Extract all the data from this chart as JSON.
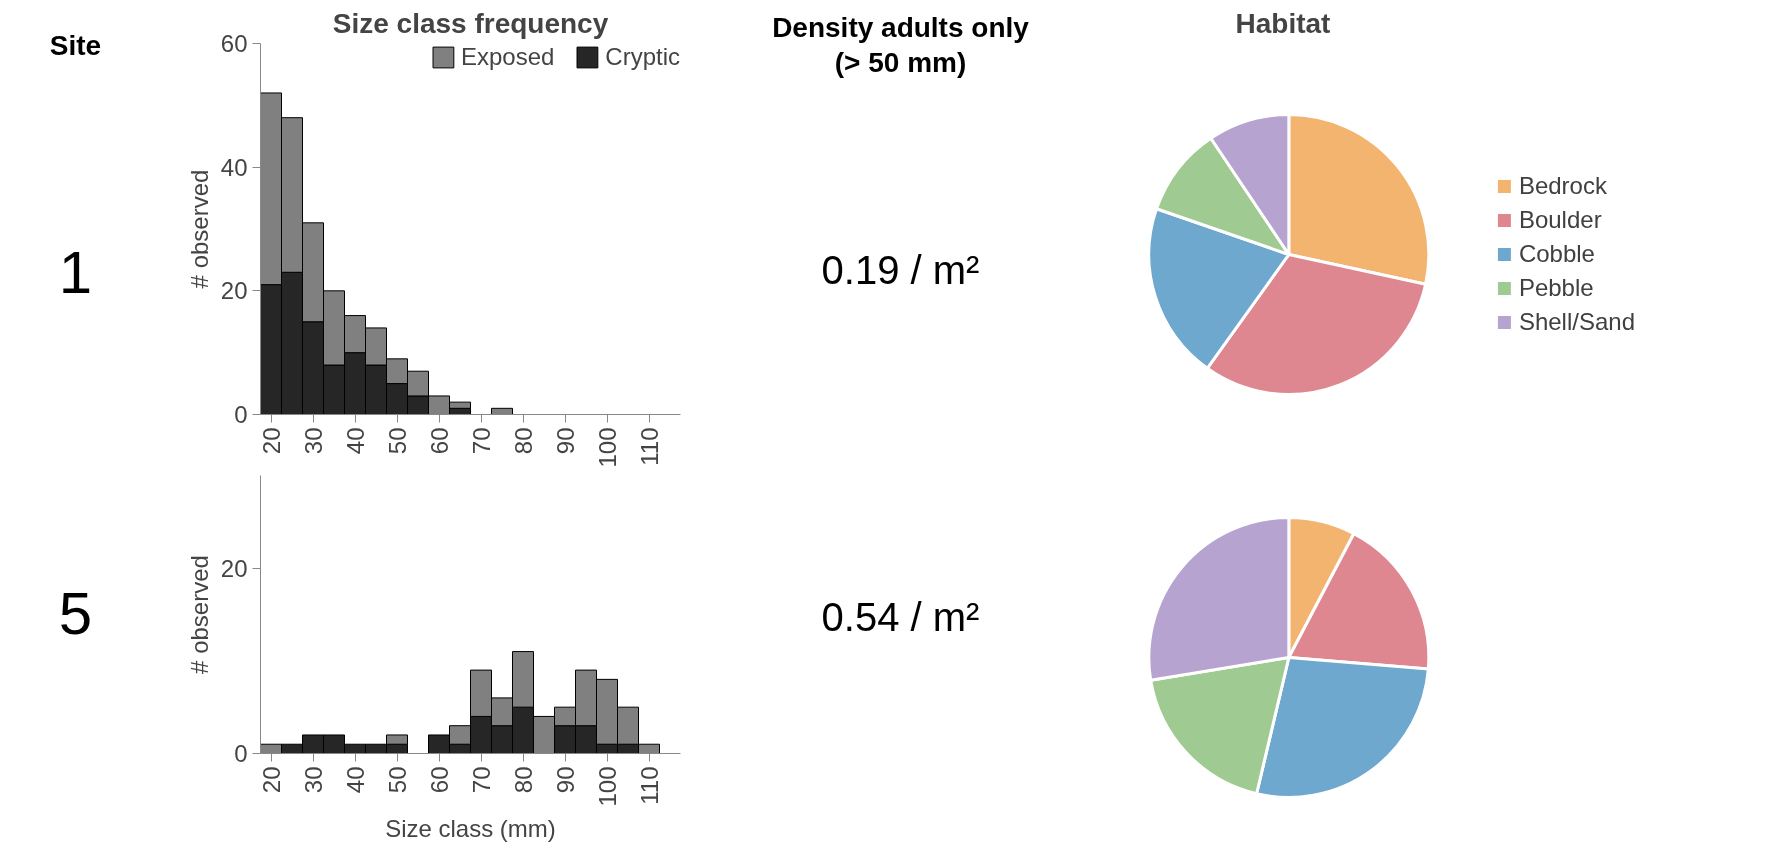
{
  "chart_data": [
    {
      "type": "other",
      "title": "Site",
      "annotations": [
        "1",
        "5"
      ]
    },
    {
      "type": "bar",
      "title": "Size class frequency",
      "ylabel": "# observed",
      "stacked": true,
      "legend": "top right",
      "grid": false,
      "x": [
        20,
        25,
        30,
        35,
        40,
        45,
        50,
        55,
        60,
        65,
        70,
        75,
        80,
        85,
        90,
        95,
        100,
        105,
        110,
        115
      ],
      "xlim": [
        17.5,
        117.5
      ],
      "xticks": [
        20,
        30,
        40,
        50,
        60,
        70,
        80,
        90,
        100,
        110
      ],
      "ylim": [
        0,
        60
      ],
      "yticks": [
        0,
        20,
        40,
        60
      ],
      "series": [
        {
          "name": "Cryptic",
          "color": "#262626",
          "values": [
            21,
            23,
            15,
            8,
            10,
            8,
            5,
            3,
            0,
            1,
            0,
            0,
            0,
            0,
            0,
            0,
            0,
            0,
            0,
            0
          ]
        },
        {
          "name": "Exposed",
          "color": "#808080",
          "values": [
            31,
            25,
            16,
            12,
            6,
            6,
            4,
            4,
            3,
            1,
            0,
            1,
            0,
            0,
            0,
            0,
            0,
            0,
            0,
            0
          ]
        }
      ]
    },
    {
      "type": "other",
      "title": "Density adults only\n(> 50 mm)",
      "annotations": [
        "0.19 / m²"
      ]
    },
    {
      "type": "pie",
      "title": "Habitat",
      "legend": "right",
      "categories": [
        "Bedrock",
        "Boulder",
        "Cobble",
        "Pebble",
        "Shell/Sand"
      ],
      "values": [
        28.4,
        31.5,
        20.4,
        10.3,
        9.4
      ],
      "colors": [
        "#f2b46e",
        "#de8791",
        "#6fa8cf",
        "#9fcb92",
        "#b6a3cf"
      ]
    },
    {
      "type": "bar",
      "xlabel": "Size class (mm)",
      "ylabel": "# observed",
      "stacked": true,
      "grid": false,
      "x": [
        20,
        25,
        30,
        35,
        40,
        45,
        50,
        55,
        60,
        65,
        70,
        75,
        80,
        85,
        90,
        95,
        100,
        105,
        110,
        115
      ],
      "xlim": [
        17.5,
        117.5
      ],
      "xticks": [
        20,
        30,
        40,
        50,
        60,
        70,
        80,
        90,
        100,
        110
      ],
      "ylim": [
        0,
        30
      ],
      "yticks": [
        0,
        20
      ],
      "series": [
        {
          "color": "#262626",
          "values": [
            0,
            1,
            2,
            2,
            1,
            1,
            1,
            0,
            2,
            1,
            4,
            3,
            5,
            0,
            3,
            3,
            1,
            1,
            0,
            0
          ]
        },
        {
          "color": "#808080",
          "values": [
            1,
            0,
            0,
            0,
            0,
            0,
            1,
            0,
            0,
            2,
            5,
            3,
            6,
            4,
            2,
            6,
            7,
            4,
            1,
            0
          ]
        }
      ]
    },
    {
      "type": "other",
      "annotations": [
        "0.54 / m²"
      ]
    },
    {
      "type": "pie",
      "categories": [
        null,
        null,
        null,
        null,
        null
      ],
      "values": [
        7.7,
        18.6,
        27.4,
        18.7,
        27.6
      ],
      "colors": [
        "#f2b46e",
        "#de8791",
        "#6fa8cf",
        "#9fcb92",
        "#b6a3cf"
      ]
    }
  ]
}
